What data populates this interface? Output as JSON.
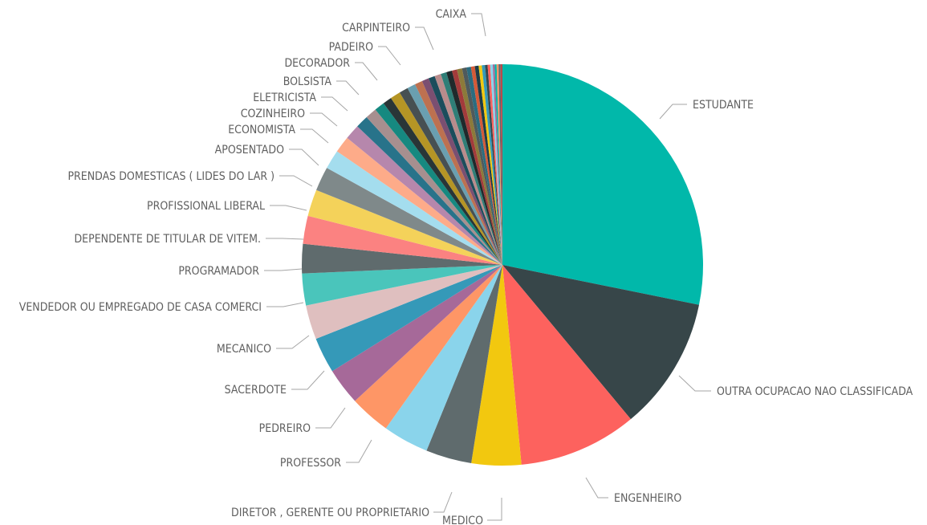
{
  "chart_data": {
    "type": "pie",
    "title": "",
    "labeled_slices": [
      {
        "label": "ESTUDANTE",
        "value": 27.5,
        "color": "#01B8AA"
      },
      {
        "label": "OUTRA OCUPACAO NAO CLASSIFICADA",
        "value": 10.5,
        "color": "#374649"
      },
      {
        "label": "ENGENHEIRO",
        "value": 9.3,
        "color": "#FD625E"
      },
      {
        "label": "MEDICO",
        "value": 3.9,
        "color": "#F2C80F"
      },
      {
        "label": "DIRETOR , GERENTE OU PROPRIETARIO",
        "value": 3.6,
        "color": "#5F6B6D"
      },
      {
        "label": "PROFESSOR",
        "value": 3.6,
        "color": "#8AD4EB"
      },
      {
        "label": "PEDREIRO",
        "value": 3.2,
        "color": "#FE9666"
      },
      {
        "label": "SACERDOTE",
        "value": 2.9,
        "color": "#A66999"
      },
      {
        "label": "MECANICO",
        "value": 2.8,
        "color": "#3599B8"
      },
      {
        "label": "VENDEDOR OU EMPREGADO DE CASA COMERCI",
        "value": 2.7,
        "color": "#DFBFBF"
      },
      {
        "label": "PROGRAMADOR",
        "value": 2.5,
        "color": "#4AC5BB"
      },
      {
        "label": "DEPENDENTE DE TITULAR DE VITEM.",
        "value": 2.3,
        "color": "#5F6B6D"
      },
      {
        "label": "PROFISSIONAL LIBERAL",
        "value": 2.2,
        "color": "#FB8281"
      },
      {
        "label": "PRENDAS DOMESTICAS ( LIDES DO LAR )",
        "value": 2.1,
        "color": "#F4D25A"
      },
      {
        "label": "APOSENTADO",
        "value": 1.9,
        "color": "#7F898A"
      },
      {
        "label": "ECONOMISTA",
        "value": 1.5,
        "color": "#A4DDEE"
      },
      {
        "label": "COZINHEIRO",
        "value": 1.3,
        "color": "#FDAB89"
      },
      {
        "label": "ELETRICISTA",
        "value": 1.2,
        "color": "#B687AC"
      },
      {
        "label": "BOLSISTA",
        "value": 1.0,
        "color": "#28738A"
      },
      {
        "label": "DECORADOR",
        "value": 0.9,
        "color": "#A78F8F"
      },
      {
        "label": "PADEIRO",
        "value": 0.8,
        "color": "#168980"
      },
      {
        "label": "CARPINTEIRO",
        "value": 0.7,
        "color": "#293537"
      },
      {
        "label": "CAIXA",
        "value": 0.15,
        "color": "#BB4A4A"
      }
    ],
    "unlabeled_slices": [
      {
        "value": 0.8,
        "color": "#B59525"
      },
      {
        "value": 0.7,
        "color": "#475052"
      },
      {
        "value": 0.65,
        "color": "#6A9FB0"
      },
      {
        "value": 0.6,
        "color": "#BD7150"
      },
      {
        "value": 0.55,
        "color": "#7B4F71"
      },
      {
        "value": 0.5,
        "color": "#1B4D5C"
      },
      {
        "value": 0.5,
        "color": "#B98C8C"
      },
      {
        "value": 0.45,
        "color": "#2F7E77"
      },
      {
        "value": 0.45,
        "color": "#1F2A2C"
      },
      {
        "value": 0.4,
        "color": "#A23B3B"
      },
      {
        "value": 0.4,
        "color": "#8C7A3A"
      },
      {
        "value": 0.35,
        "color": "#4F5A5C"
      },
      {
        "value": 0.35,
        "color": "#2B6C80"
      },
      {
        "value": 0.3,
        "color": "#D45A38"
      },
      {
        "value": 0.3,
        "color": "#1E3C48"
      },
      {
        "value": 0.25,
        "color": "#F2C80F"
      },
      {
        "value": 0.25,
        "color": "#3599B8"
      },
      {
        "value": 0.2,
        "color": "#374649"
      },
      {
        "value": 0.2,
        "color": "#FD625E"
      },
      {
        "value": 0.2,
        "color": "#8AD4EB"
      },
      {
        "value": 0.15,
        "color": "#A66999"
      },
      {
        "value": 0.15,
        "color": "#01B8AA"
      },
      {
        "value": 0.15,
        "color": "#FE9666"
      },
      {
        "value": 0.15,
        "color": "#5F6B6D"
      }
    ],
    "legend": "none",
    "labels": "outside-with-leader-lines"
  }
}
